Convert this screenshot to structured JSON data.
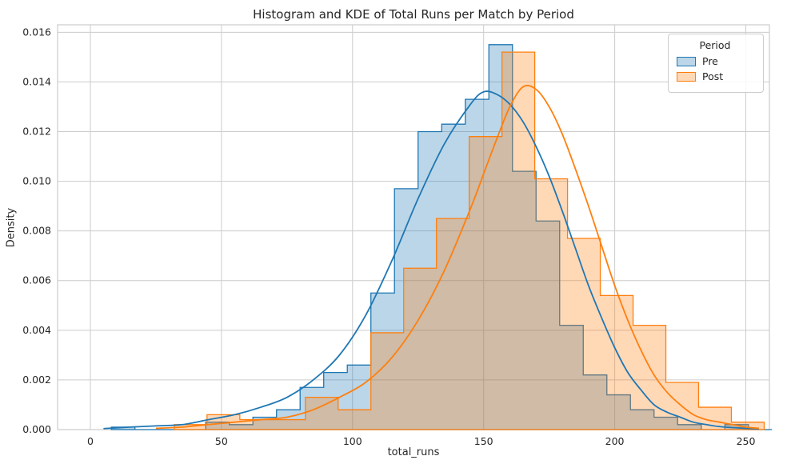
{
  "chart_data": {
    "type": "histogram+kde",
    "title": "Histogram and KDE of Total Runs per Match by Period",
    "xlabel": "total_runs",
    "ylabel": "Density",
    "xlim": [
      -12.5,
      259
    ],
    "ylim": [
      0,
      0.0163
    ],
    "xticks": [
      0,
      50,
      100,
      150,
      200,
      250
    ],
    "yticks": [
      0,
      0.002,
      0.004,
      0.006,
      0.008,
      0.01,
      0.012,
      0.014,
      0.016
    ],
    "grid": true,
    "grid_color": "#cccccc",
    "spine_color": "#cccccc",
    "text_color": "#262626",
    "fill_alpha": 0.3,
    "legend": {
      "title": "Period",
      "position": "upper right",
      "entries": [
        {
          "label": "Pre",
          "color": "#1f77b4"
        },
        {
          "label": "Post",
          "color": "#ff7f0e"
        }
      ]
    },
    "series": [
      {
        "name": "Pre",
        "color": "#1f77b4",
        "bin_edges": [
          8,
          17,
          26,
          35,
          44,
          53,
          62,
          71,
          80,
          89,
          98,
          107,
          116,
          125,
          134,
          143,
          152,
          161,
          170,
          179,
          188,
          197,
          206,
          215,
          224,
          233,
          242,
          251,
          260
        ],
        "densities": [
          0.0001,
          0,
          0,
          0,
          0.0003,
          0.0002,
          0.0005,
          0.0008,
          0.0017,
          0.0023,
          0.0026,
          0.0055,
          0.0097,
          0.012,
          0.0123,
          0.0133,
          0.0155,
          0.0104,
          0.0084,
          0.0042,
          0.0022,
          0.0014,
          0.0008,
          0.0005,
          0.0002,
          0,
          0.0002,
          0
        ],
        "kde": {
          "x": [
            5,
            15,
            25,
            35,
            45,
            55,
            65,
            75,
            85,
            95,
            105,
            115,
            125,
            135,
            145,
            150,
            155,
            160,
            165,
            170,
            175,
            180,
            185,
            190,
            195,
            200,
            205,
            210,
            215,
            220,
            225,
            230,
            235,
            240,
            245,
            250,
            255
          ],
          "y": [
            4e-05,
            0.0001,
            0.00015,
            0.0002,
            0.0004,
            0.0006,
            0.0009,
            0.0013,
            0.002,
            0.003,
            0.0046,
            0.0068,
            0.0093,
            0.0115,
            0.0131,
            0.0136,
            0.0135,
            0.0131,
            0.0124,
            0.0114,
            0.0102,
            0.0088,
            0.0073,
            0.0058,
            0.0045,
            0.0033,
            0.0023,
            0.0016,
            0.001,
            0.0007,
            0.0005,
            0.0003,
            0.0002,
            0.00012,
            8e-05,
            5e-05,
            3e-05
          ]
        }
      },
      {
        "name": "Post",
        "color": "#ff7f0e",
        "bin_edges": [
          32,
          44.5,
          57,
          69.5,
          82,
          94.5,
          107,
          119.5,
          132,
          144.5,
          157,
          169.5,
          182,
          194.5,
          207,
          219.5,
          232,
          244.5,
          257
        ],
        "densities": [
          0.0002,
          0.0006,
          0.0004,
          0.0004,
          0.0013,
          0.0008,
          0.0039,
          0.0065,
          0.0085,
          0.0118,
          0.0152,
          0.0101,
          0.0077,
          0.0054,
          0.0042,
          0.0019,
          0.0009,
          0.0003
        ],
        "kde": {
          "x": [
            25,
            35,
            45,
            55,
            65,
            75,
            85,
            95,
            105,
            115,
            125,
            135,
            145,
            150,
            155,
            160,
            165,
            170,
            175,
            180,
            185,
            190,
            195,
            200,
            205,
            210,
            215,
            220,
            225,
            230,
            235,
            240,
            245,
            250,
            255
          ],
          "y": [
            5e-05,
            0.0001,
            0.0002,
            0.0003,
            0.0004,
            0.0005,
            0.0008,
            0.0013,
            0.0019,
            0.0029,
            0.0044,
            0.0064,
            0.0089,
            0.0103,
            0.0117,
            0.013,
            0.0138,
            0.0137,
            0.013,
            0.0119,
            0.0105,
            0.009,
            0.0074,
            0.0058,
            0.0044,
            0.0032,
            0.0022,
            0.0015,
            0.001,
            0.0006,
            0.0004,
            0.0003,
            0.0002,
            0.0001,
            5e-05
          ]
        }
      }
    ]
  }
}
